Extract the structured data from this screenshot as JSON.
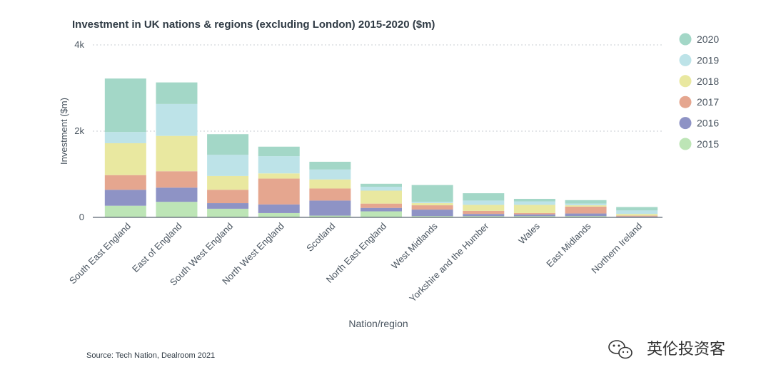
{
  "chart_data": {
    "type": "bar",
    "stacked": true,
    "title": "Investment in UK nations & regions (excluding London) 2015-2020 ($m)",
    "xlabel": "Nation/region",
    "ylabel": "Investment ($m)",
    "ylim": [
      0,
      4000
    ],
    "yticks": [
      0,
      2000,
      4000
    ],
    "ytick_labels": [
      "0",
      "2k",
      "4k"
    ],
    "grid": true,
    "legend_position": "right",
    "categories": [
      "South East England",
      "East of England",
      "South West England",
      "North West England",
      "Scotland",
      "North East England",
      "West Midlands",
      "Yorkshire and the Humber",
      "Wales",
      "East Midlands",
      "Northern Ireland"
    ],
    "series": [
      {
        "name": "2015",
        "color": "#bde5b6",
        "values": [
          270,
          360,
          200,
          100,
          40,
          140,
          30,
          30,
          30,
          30,
          10
        ]
      },
      {
        "name": "2016",
        "color": "#8e93c5",
        "values": [
          370,
          330,
          130,
          200,
          350,
          80,
          150,
          50,
          40,
          60,
          10
        ]
      },
      {
        "name": "2017",
        "color": "#e5a68f",
        "values": [
          340,
          380,
          310,
          600,
          280,
          100,
          100,
          70,
          30,
          160,
          20
        ]
      },
      {
        "name": "2018",
        "color": "#e9e8a0",
        "values": [
          740,
          820,
          320,
          120,
          210,
          300,
          50,
          140,
          190,
          30,
          40
        ]
      },
      {
        "name": "2019",
        "color": "#bde3e8",
        "values": [
          260,
          740,
          490,
          400,
          230,
          90,
          30,
          100,
          80,
          40,
          80
        ]
      },
      {
        "name": "2020",
        "color": "#a3d7c7",
        "values": [
          1240,
          500,
          480,
          220,
          180,
          70,
          390,
          170,
          60,
          80,
          80
        ]
      }
    ],
    "legend_order": [
      "2020",
      "2019",
      "2018",
      "2017",
      "2016",
      "2015"
    ]
  },
  "source": "Source: Tech Nation, Dealroom 2021",
  "watermark": {
    "text": "英伦投资客",
    "icon": "wechat-icon"
  }
}
